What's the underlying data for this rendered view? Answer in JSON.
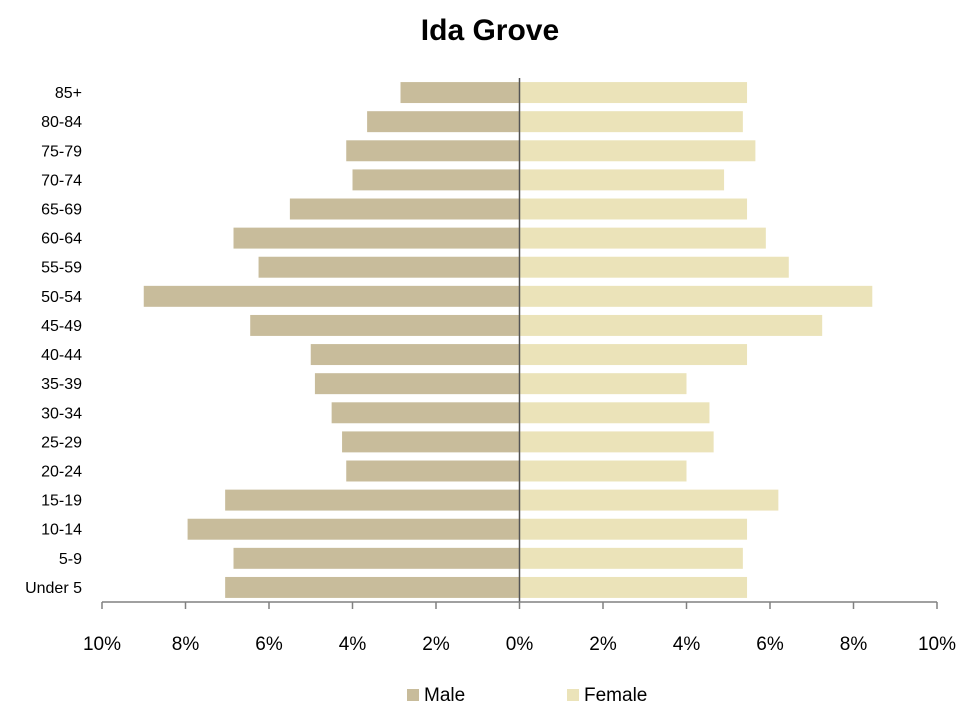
{
  "chart_data": {
    "type": "bar",
    "orientation": "horizontal",
    "title": "Ida Grove",
    "categories": [
      "Under 5",
      "5-9",
      "10-14",
      "15-19",
      "20-24",
      "25-29",
      "30-34",
      "35-39",
      "40-44",
      "45-49",
      "50-54",
      "55-59",
      "60-64",
      "65-69",
      "70-74",
      "75-79",
      "80-84",
      "85+"
    ],
    "series": [
      {
        "name": "Male",
        "color": "#c8bc9b",
        "direction": "left",
        "values": [
          7.05,
          6.85,
          7.95,
          7.05,
          4.15,
          4.25,
          4.5,
          4.9,
          5.0,
          6.45,
          9.0,
          6.25,
          6.85,
          5.5,
          4.0,
          4.15,
          3.65,
          2.85
        ]
      },
      {
        "name": "Female",
        "color": "#ebe3b9",
        "direction": "right",
        "values": [
          5.45,
          5.35,
          5.45,
          6.2,
          4.0,
          4.65,
          4.55,
          4.0,
          5.45,
          7.25,
          8.45,
          6.45,
          5.9,
          5.45,
          4.9,
          5.65,
          5.35,
          5.45
        ]
      }
    ],
    "x_ticks": [
      "10%",
      "8%",
      "6%",
      "4%",
      "2%",
      "0%",
      "2%",
      "4%",
      "6%",
      "8%",
      "10%"
    ],
    "xlim": [
      -10,
      10
    ],
    "grid": false,
    "legend_position": "bottom"
  }
}
